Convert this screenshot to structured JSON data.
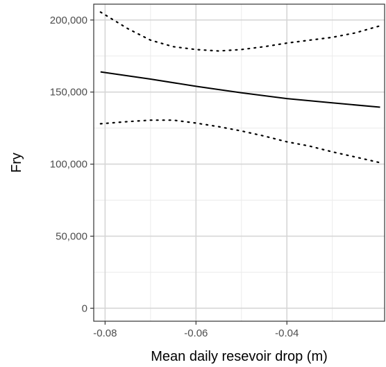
{
  "chart_data": {
    "type": "line",
    "title": "",
    "xlabel": "Mean daily resevoir drop (m)",
    "ylabel": "Fry",
    "xlim": [
      -0.0825,
      -0.0185
    ],
    "ylim": [
      -9000,
      211000
    ],
    "x_ticks": [
      {
        "value": -0.08,
        "label": "-0.08"
      },
      {
        "value": -0.06,
        "label": "-0.06"
      },
      {
        "value": -0.04,
        "label": "-0.04"
      }
    ],
    "y_ticks": [
      {
        "value": 0,
        "label": "0"
      },
      {
        "value": 50000,
        "label": "50,000"
      },
      {
        "value": 100000,
        "label": "100,000"
      },
      {
        "value": 150000,
        "label": "150,000"
      },
      {
        "value": 200000,
        "label": "200,000"
      }
    ],
    "grid": true,
    "series": [
      {
        "style": "solid",
        "x": [
          -0.081,
          -0.07,
          -0.06,
          -0.05,
          -0.04,
          -0.03,
          -0.0195
        ],
        "y": [
          164000,
          159000,
          154000,
          149500,
          145500,
          142500,
          139500
        ]
      },
      {
        "style": "dotted",
        "x": [
          -0.081,
          -0.075,
          -0.07,
          -0.065,
          -0.06,
          -0.055,
          -0.05,
          -0.045,
          -0.04,
          -0.035,
          -0.03,
          -0.025,
          -0.0195
        ],
        "y": [
          205500,
          194000,
          186000,
          181500,
          179500,
          178500,
          179500,
          181500,
          184000,
          186000,
          188000,
          191000,
          196000
        ]
      },
      {
        "style": "dotted",
        "x": [
          -0.081,
          -0.075,
          -0.07,
          -0.065,
          -0.06,
          -0.055,
          -0.05,
          -0.045,
          -0.04,
          -0.035,
          -0.03,
          -0.025,
          -0.0195
        ],
        "y": [
          128000,
          129500,
          130500,
          130500,
          128500,
          126000,
          123000,
          119500,
          115500,
          112500,
          108500,
          105000,
          101000
        ]
      }
    ]
  }
}
